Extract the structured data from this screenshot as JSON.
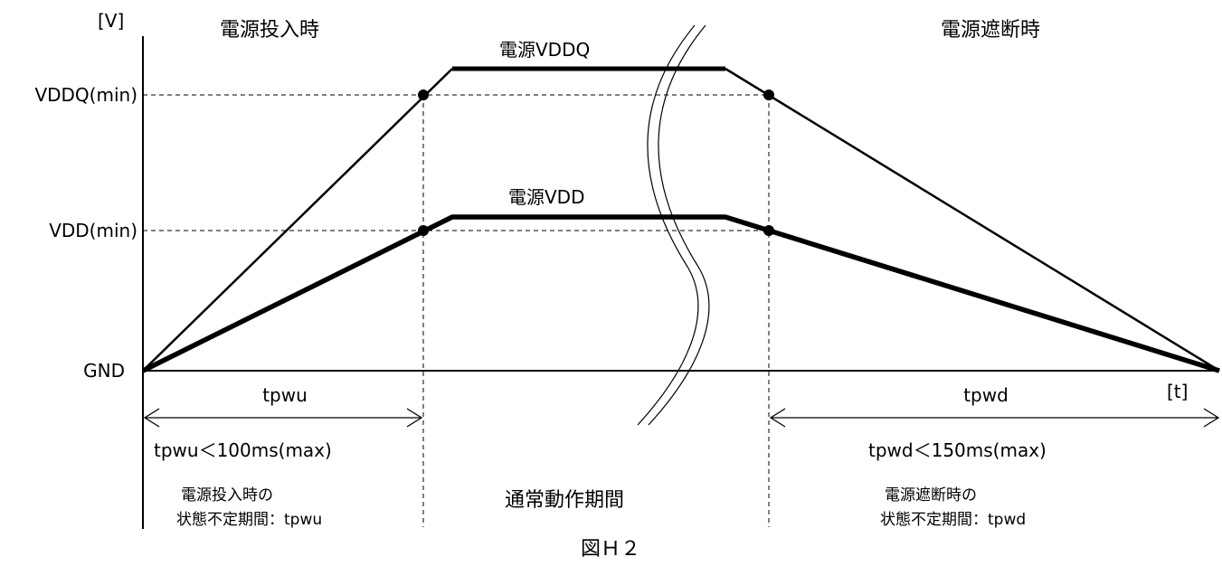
{
  "axes": {
    "y_unit": "[V]",
    "x_unit": "[t]",
    "y_levels": {
      "vddq_min": "VDDQ(min)",
      "vdd_min": "VDD(min)",
      "gnd": "GND"
    }
  },
  "sections": {
    "power_on": "電源投入時",
    "power_off": "電源遮断時"
  },
  "series": {
    "vddq": "電源VDDQ",
    "vdd": "電源VDD"
  },
  "periods": {
    "tpwu": {
      "label": "tpwu",
      "constraint": "tpwu＜100ms(max)",
      "note_line1": "電源投入時の",
      "note_line2": "状態不定期間：tpwu"
    },
    "normal": {
      "label": "通常動作期間"
    },
    "tpwd": {
      "label": "tpwd",
      "constraint": "tpwd＜150ms(max)",
      "note_line1": "電源遮断時の",
      "note_line2": "状態不定期間：tpwd"
    }
  },
  "caption": "図Ｈ２"
}
